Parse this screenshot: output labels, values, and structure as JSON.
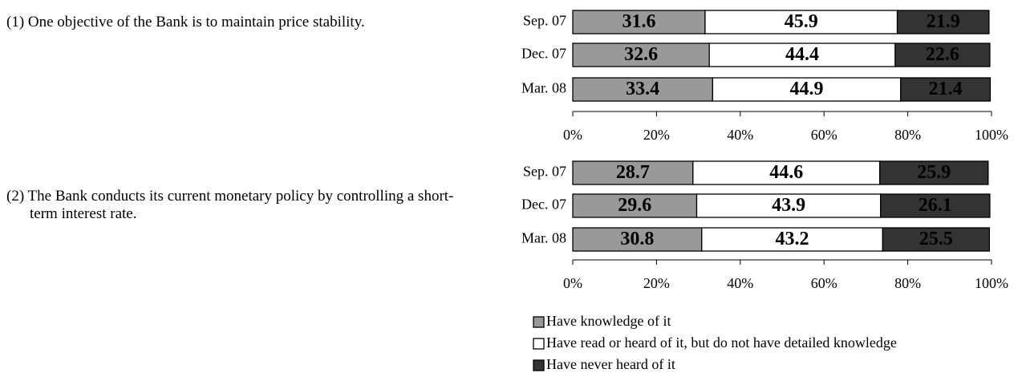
{
  "chart_data": [
    {
      "type": "stacked_bar_horizontal",
      "title": "(1) One objective of the Bank is to maintain price stability.",
      "categories": [
        "Sep. 07",
        "Dec. 07",
        "Mar. 08"
      ],
      "series": [
        {
          "name": "Have knowledge of it",
          "color": "#999999",
          "values": [
            31.6,
            32.6,
            33.4
          ]
        },
        {
          "name": "Have read or heard of it, but do not have detailed knowledge",
          "color": "#ffffff",
          "values": [
            45.9,
            44.4,
            44.9
          ]
        },
        {
          "name": "Have never heard of it",
          "color": "#333333",
          "values": [
            21.9,
            22.6,
            21.4
          ]
        }
      ],
      "xlim": [
        0,
        100
      ],
      "xticks": [
        {
          "value": 0,
          "label": "0%"
        },
        {
          "value": 20,
          "label": "20%"
        },
        {
          "value": 40,
          "label": "40%"
        },
        {
          "value": 60,
          "label": "60%"
        },
        {
          "value": 80,
          "label": "80%"
        },
        {
          "value": 100,
          "label": "100%"
        }
      ]
    },
    {
      "type": "stacked_bar_horizontal",
      "title": "(2) The Bank conducts its current monetary policy by controlling a short-term interest rate.",
      "categories": [
        "Sep. 07",
        "Dec. 07",
        "Mar. 08"
      ],
      "series": [
        {
          "color": "#999999",
          "values": [
            28.7,
            29.6,
            30.8
          ]
        },
        {
          "color": "#ffffff",
          "values": [
            44.6,
            43.9,
            43.2
          ]
        },
        {
          "color": "#333333",
          "values": [
            25.9,
            26.1,
            25.5
          ]
        }
      ],
      "xlim": [
        0,
        100
      ],
      "xticks": [
        {
          "value": 0,
          "label": "0%"
        },
        {
          "value": 20,
          "label": "20%"
        },
        {
          "value": 40,
          "label": "40%"
        },
        {
          "value": 60,
          "label": "60%"
        },
        {
          "value": 80,
          "label": "80%"
        },
        {
          "value": 100,
          "label": "100%"
        }
      ]
    }
  ]
}
